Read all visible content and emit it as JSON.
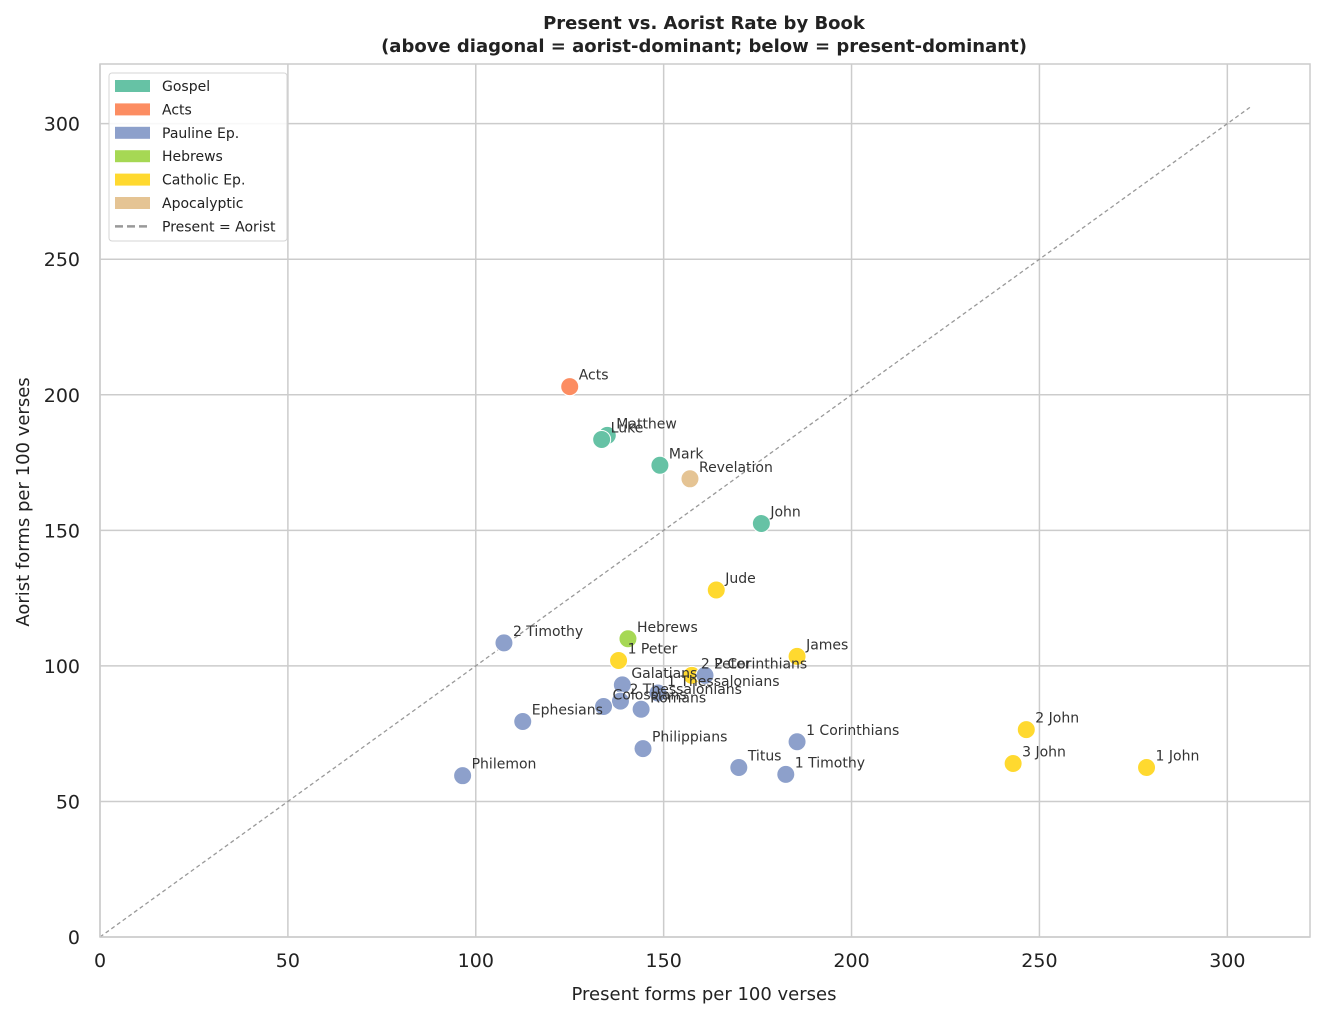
{
  "chart_data": {
    "type": "scatter",
    "title": "Present vs. Aorist Rate by Book",
    "subtitle": "(above diagonal = aorist-dominant; below = present-dominant)",
    "xlabel": "Present forms per 100 verses",
    "ylabel": "Aorist forms per 100 verses",
    "xlim": [
      0,
      322
    ],
    "ylim": [
      0,
      322
    ],
    "xticks": [
      0,
      50,
      100,
      150,
      200,
      250,
      300
    ],
    "yticks": [
      0,
      50,
      100,
      150,
      200,
      250,
      300
    ],
    "grid": true,
    "legend_position": "top-left",
    "diagonal": {
      "label": "Present = Aorist",
      "from": 0,
      "to": 306,
      "color": "#999999"
    },
    "categories": [
      {
        "name": "Gospel",
        "color": "#66c2a5"
      },
      {
        "name": "Acts",
        "color": "#fc8d62"
      },
      {
        "name": "Pauline Ep.",
        "color": "#8da0cb"
      },
      {
        "name": "Hebrews",
        "color": "#a6d854"
      },
      {
        "name": "Catholic Ep.",
        "color": "#ffd92f"
      },
      {
        "name": "Apocalyptic",
        "color": "#e5c494"
      }
    ],
    "points": [
      {
        "label": "Acts",
        "category": "Acts",
        "x": 125,
        "y": 203
      },
      {
        "label": "Matthew",
        "category": "Gospel",
        "x": 135,
        "y": 185
      },
      {
        "label": "Luke",
        "category": "Gospel",
        "x": 133.5,
        "y": 183.5
      },
      {
        "label": "Mark",
        "category": "Gospel",
        "x": 149,
        "y": 174
      },
      {
        "label": "John",
        "category": "Gospel",
        "x": 176,
        "y": 152.5
      },
      {
        "label": "Revelation",
        "category": "Apocalyptic",
        "x": 157,
        "y": 169
      },
      {
        "label": "Jude",
        "category": "Catholic Ep.",
        "x": 164,
        "y": 128
      },
      {
        "label": "James",
        "category": "Catholic Ep.",
        "x": 185.5,
        "y": 103.5
      },
      {
        "label": "1 Peter",
        "category": "Catholic Ep.",
        "x": 138,
        "y": 102
      },
      {
        "label": "2 Peter",
        "category": "Catholic Ep.",
        "x": 157.5,
        "y": 96.5
      },
      {
        "label": "2 John",
        "category": "Catholic Ep.",
        "x": 246.5,
        "y": 76.5
      },
      {
        "label": "3 John",
        "category": "Catholic Ep.",
        "x": 243,
        "y": 64
      },
      {
        "label": "1 John",
        "category": "Catholic Ep.",
        "x": 278.5,
        "y": 62.5
      },
      {
        "label": "Hebrews",
        "category": "Hebrews",
        "x": 140.5,
        "y": 110
      },
      {
        "label": "2 Timothy",
        "category": "Pauline Ep.",
        "x": 107.5,
        "y": 108.5
      },
      {
        "label": "2 Corinthians",
        "category": "Pauline Ep.",
        "x": 161,
        "y": 96.5
      },
      {
        "label": "Galatians",
        "category": "Pauline Ep.",
        "x": 139,
        "y": 93
      },
      {
        "label": "1 Thessalonians",
        "category": "Pauline Ep.",
        "x": 148.5,
        "y": 90
      },
      {
        "label": "2 Thessalonians",
        "category": "Pauline Ep.",
        "x": 138.5,
        "y": 87
      },
      {
        "label": "Colossians",
        "category": "Pauline Ep.",
        "x": 134,
        "y": 85
      },
      {
        "label": "Romans",
        "category": "Pauline Ep.",
        "x": 144,
        "y": 84
      },
      {
        "label": "Ephesians",
        "category": "Pauline Ep.",
        "x": 112.5,
        "y": 79.5
      },
      {
        "label": "1 Corinthians",
        "category": "Pauline Ep.",
        "x": 185.5,
        "y": 72
      },
      {
        "label": "Philippians",
        "category": "Pauline Ep.",
        "x": 144.5,
        "y": 69.5
      },
      {
        "label": "Titus",
        "category": "Pauline Ep.",
        "x": 170,
        "y": 62.5
      },
      {
        "label": "1 Timothy",
        "category": "Pauline Ep.",
        "x": 182.5,
        "y": 60
      },
      {
        "label": "Philemon",
        "category": "Pauline Ep.",
        "x": 96.5,
        "y": 59.5
      }
    ]
  }
}
